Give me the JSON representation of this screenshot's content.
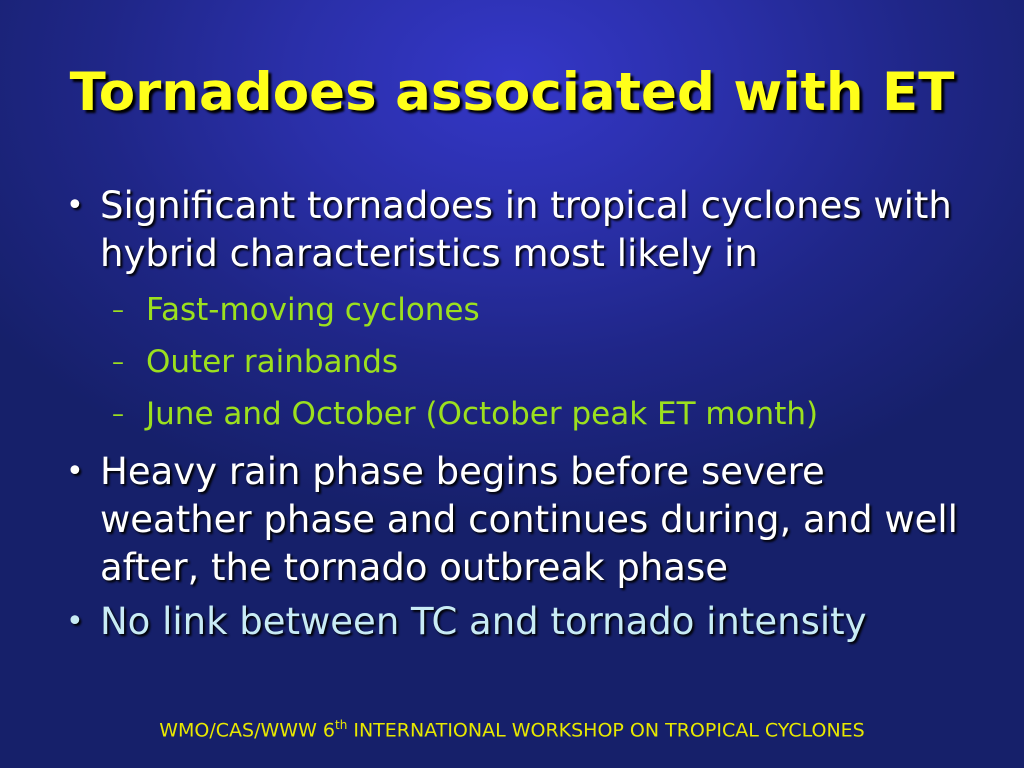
{
  "slide": {
    "title": "Tornadoes associated with ET",
    "bullet_1": "Significant tornadoes in tropical cyclones with hybrid characteristics most likely in",
    "sub_items": [
      "Fast-moving cyclones",
      "Outer rainbands",
      "June and October (October peak ET month)"
    ],
    "bullet_2": "Heavy rain phase begins before severe weather phase and continues during, and well after, the tornado outbreak phase",
    "bullet_3": "No link between TC and tornado intensity",
    "bullet_glyph": "•",
    "dash_glyph": "–",
    "footer": {
      "before": "WMO/CAS/WWW 6",
      "sup": "th",
      "after": " INTERNATIONAL WORKSHOP ON TROPICAL CYCLONES"
    }
  },
  "colors": {
    "title": "#ffff1a",
    "body_text": "#ffffff",
    "sub_text": "#9ce01e",
    "highlight_text": "#c8ebf5",
    "background": "#2a2fa8",
    "footer": "#e8e800"
  }
}
